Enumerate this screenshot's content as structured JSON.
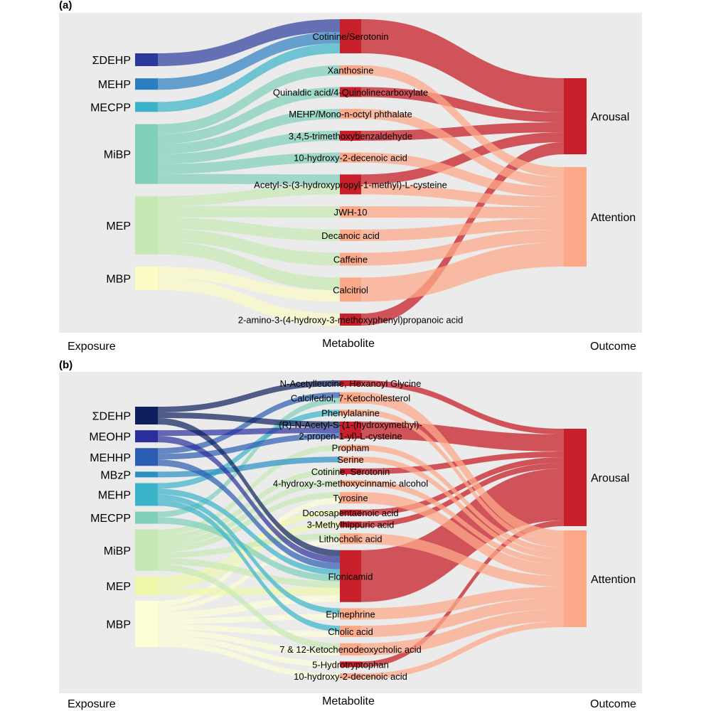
{
  "colors": {
    "arousal": "#c8202a",
    "attention": "#fca98a",
    "background": "#ebebeb"
  },
  "panels": [
    {
      "tag": "(a)",
      "columns": [
        "Exposure",
        "Metabolite",
        "Outcome"
      ],
      "exposures": [
        {
          "name": "ΣDEHP",
          "color": "#2b3a9c"
        },
        {
          "name": "MEHP",
          "color": "#2b7fc0"
        },
        {
          "name": "MECPP",
          "color": "#3bb4c9"
        },
        {
          "name": "MiBP",
          "color": "#7fcfb9"
        },
        {
          "name": "MEP",
          "color": "#c6e9b4"
        },
        {
          "name": "MBP",
          "color": "#fbfbc6"
        }
      ],
      "metabolites": [
        "Cotinine/Serotonin",
        "Xanthosine",
        "Quinaldic acid/4-Quinolinecarboxylate",
        "MEHP/Mono-n-octyl phthalate",
        "3,4,5-trimethoxybenzaldehyde",
        "10-hydroxy-2-decenoic acid",
        "Acetyl-S-(3-hydroxypropyl-1-methyl)-L-cysteine",
        "JWH-10",
        "Decanoic acid",
        "Caffeine",
        "Calcitriol",
        "2-amino-3-(4-hydroxy-3-methoxyphenyl)propanoic acid"
      ],
      "outcomes": [
        "Arousal",
        "Attention"
      ],
      "exposure_links": [
        [
          "ΣDEHP",
          "Cotinine/Serotonin",
          18
        ],
        [
          "MEHP",
          "Cotinine/Serotonin",
          16
        ],
        [
          "MECPP",
          "Cotinine/Serotonin",
          14
        ],
        [
          "MiBP",
          "Xanthosine",
          14
        ],
        [
          "MiBP",
          "Quinaldic acid/4-Quinolinecarboxylate",
          14
        ],
        [
          "MiBP",
          "MEHP/Mono-n-octyl phthalate",
          14
        ],
        [
          "MiBP",
          "3,4,5-trimethoxybenzaldehyde",
          14
        ],
        [
          "MiBP",
          "10-hydroxy-2-decenoic acid",
          14
        ],
        [
          "MiBP",
          "Acetyl-S-(3-hydroxypropyl-1-methyl)-L-cysteine",
          14
        ],
        [
          "MEP",
          "Acetyl-S-(3-hydroxypropyl-1-methyl)-L-cysteine",
          14
        ],
        [
          "MEP",
          "JWH-10",
          16
        ],
        [
          "MEP",
          "Decanoic acid",
          16
        ],
        [
          "MEP",
          "Caffeine",
          18
        ],
        [
          "MEP",
          "Calcitriol",
          18
        ],
        [
          "MBP",
          "Calcitriol",
          16
        ],
        [
          "MBP",
          "2-amino-3-(4-hydroxy-3-methoxyphenyl)propanoic acid",
          17
        ]
      ],
      "outcome_links": [
        [
          "Cotinine/Serotonin",
          "Arousal",
          48
        ],
        [
          "Xanthosine",
          "Attention",
          14
        ],
        [
          "Quinaldic acid/4-Quinolinecarboxylate",
          "Arousal",
          14
        ],
        [
          "MEHP/Mono-n-octyl phthalate",
          "Attention",
          14
        ],
        [
          "3,4,5-trimethoxybenzaldehyde",
          "Arousal",
          14
        ],
        [
          "10-hydroxy-2-decenoic acid",
          "Attention",
          14
        ],
        [
          "Acetyl-S-(3-hydroxypropyl-1-methyl)-L-cysteine",
          "Arousal",
          14
        ],
        [
          "Acetyl-S-(3-hydroxypropyl-1-methyl)-L-cysteine",
          "Attention",
          14
        ],
        [
          "JWH-10",
          "Attention",
          16
        ],
        [
          "Decanoic acid",
          "Attention",
          16
        ],
        [
          "Caffeine",
          "Attention",
          18
        ],
        [
          "Calcitriol",
          "Attention",
          34
        ],
        [
          "2-amino-3-(4-hydroxy-3-methoxyphenyl)propanoic acid",
          "Arousal",
          17
        ]
      ]
    },
    {
      "tag": "(b)",
      "columns": [
        "Exposure",
        "Metabolite",
        "Outcome"
      ],
      "exposures": [
        {
          "name": "ΣDEHP",
          "color": "#0e1f5e"
        },
        {
          "name": "MEOHP",
          "color": "#2b2f9c"
        },
        {
          "name": "MEHHP",
          "color": "#2b5db2"
        },
        {
          "name": "MBzP",
          "color": "#2a90c2"
        },
        {
          "name": "MEHP",
          "color": "#3bb4c9"
        },
        {
          "name": "MECPP",
          "color": "#7fcfb9"
        },
        {
          "name": "MiBP",
          "color": "#c6e9b4"
        },
        {
          "name": "MEP",
          "color": "#eef8a8"
        },
        {
          "name": "MBP",
          "color": "#fdfdd6"
        }
      ],
      "metabolites": [
        "N-Acetylleucine, Hexanoyl Glycine",
        "Calcifediol, 7-Ketocholesterol",
        "Phenylalanine",
        "(R)-N-Acetyl-S-(1-(hydroxymethyl)-\n2-propen-1-yl)-L-cysteine",
        "Propham",
        "Serine",
        "Cotinine, Serotonin",
        "4-hydroxy-3-methoxycinnamic alcohol",
        "Tyrosine",
        "Docosapentaenoic acid",
        "3-Methylhippuric acid",
        "Lithocholic acid",
        "Flonicamid",
        "Epinephrine",
        "Cholic acid",
        "7 & 12-Ketochenodeoxycholic acid",
        "5-Hydrotryptophan",
        "10-hydroxy-2-decenoic acid"
      ],
      "outcomes": [
        "Arousal",
        "Attention"
      ],
      "exposure_links": [
        [
          "ΣDEHP",
          "N-Acetylleucine, Hexanoyl Glycine",
          8
        ],
        [
          "ΣDEHP",
          "(R)-N-Acetyl-S-(1-(hydroxymethyl)-\n2-propen-1-yl)-L-cysteine",
          8
        ],
        [
          "ΣDEHP",
          "Flonicamid",
          9
        ],
        [
          "MEOHP",
          "(R)-N-Acetyl-S-(1-(hydroxymethyl)-\n2-propen-1-yl)-L-cysteine",
          8
        ],
        [
          "MEOHP",
          "Flonicamid",
          9
        ],
        [
          "MEHHP",
          "Calcifediol, 7-Ketocholesterol",
          8
        ],
        [
          "MEHHP",
          "(R)-N-Acetyl-S-(1-(hydroxymethyl)-\n2-propen-1-yl)-L-cysteine",
          8
        ],
        [
          "MEHHP",
          "Flonicamid",
          9
        ],
        [
          "MBzP",
          "Serine",
          8
        ],
        [
          "MEHP",
          "Phenylalanine",
          8
        ],
        [
          "MEHP",
          "Flonicamid",
          8
        ],
        [
          "MEHP",
          "Epinephrine",
          8
        ],
        [
          "MEHP",
          "Cholic acid",
          8
        ],
        [
          "MECPP",
          "Calcifediol, 7-Ketocholesterol",
          8
        ],
        [
          "MECPP",
          "Flonicamid",
          9
        ],
        [
          "MiBP",
          "Propham",
          8
        ],
        [
          "MiBP",
          "Cotinine, Serotonin",
          8
        ],
        [
          "MiBP",
          "4-hydroxy-3-methoxycinnamic alcohol",
          8
        ],
        [
          "MiBP",
          "Tyrosine",
          8
        ],
        [
          "MiBP",
          "Lithocholic acid",
          8
        ],
        [
          "MiBP",
          "Flonicamid",
          9
        ],
        [
          "MiBP",
          "7 & 12-Ketochenodeoxycholic acid",
          9
        ],
        [
          "MEP",
          "Docosapentaenoic acid",
          8
        ],
        [
          "MEP",
          "3-Methylhippuric acid",
          8
        ],
        [
          "MEP",
          "Flonicamid",
          10
        ],
        [
          "MBP",
          "Tyrosine",
          8
        ],
        [
          "MBP",
          "Lithocholic acid",
          7
        ],
        [
          "MBP",
          "Flonicamid",
          10
        ],
        [
          "MBP",
          "Epinephrine",
          8
        ],
        [
          "MBP",
          "Cholic acid",
          8
        ],
        [
          "MBP",
          "7 & 12-Ketochenodeoxycholic acid",
          8
        ],
        [
          "MBP",
          "5-Hydrotryptophan",
          8
        ],
        [
          "MBP",
          "10-hydroxy-2-decenoic acid",
          8
        ]
      ],
      "outcome_links": [
        [
          "N-Acetylleucine, Hexanoyl Glycine",
          "Arousal",
          8
        ],
        [
          "Calcifediol, 7-Ketocholesterol",
          "Attention",
          16
        ],
        [
          "Phenylalanine",
          "Attention",
          8
        ],
        [
          "(R)-N-Acetyl-S-(1-(hydroxymethyl)-\n2-propen-1-yl)-L-cysteine",
          "Arousal",
          24
        ],
        [
          "Propham",
          "Attention",
          8
        ],
        [
          "Serine",
          "Attention",
          8
        ],
        [
          "Cotinine, Serotonin",
          "Arousal",
          8
        ],
        [
          "4-hydroxy-3-methoxycinnamic alcohol",
          "Attention",
          8
        ],
        [
          "Tyrosine",
          "Attention",
          16
        ],
        [
          "Docosapentaenoic acid",
          "Arousal",
          8
        ],
        [
          "3-Methylhippuric acid",
          "Arousal",
          8
        ],
        [
          "Lithocholic acid",
          "Attention",
          15
        ],
        [
          "Flonicamid",
          "Arousal",
          73
        ],
        [
          "Epinephrine",
          "Attention",
          16
        ],
        [
          "Cholic acid",
          "Attention",
          16
        ],
        [
          "7 & 12-Ketochenodeoxycholic acid",
          "Attention",
          17
        ],
        [
          "5-Hydrotryptophan",
          "Arousal",
          8
        ],
        [
          "10-hydroxy-2-decenoic acid",
          "Attention",
          8
        ]
      ]
    }
  ]
}
